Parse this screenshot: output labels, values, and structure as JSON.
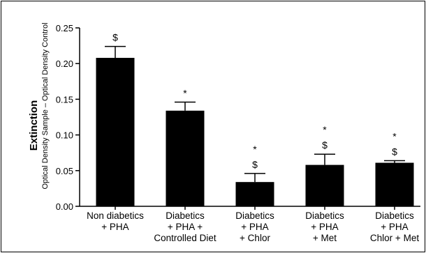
{
  "chart_data": {
    "type": "bar",
    "title": "",
    "ylabel": "Extinction",
    "ylabel_sub": "Optical Density Sample – Optical Density Control",
    "xlabel": "",
    "ylim": [
      0,
      0.25
    ],
    "yticks": [
      0.0,
      0.05,
      0.1,
      0.15,
      0.2,
      0.25
    ],
    "ytick_labels": [
      "0.00",
      "0.05",
      "0.10",
      "0.15",
      "0.20",
      "0.25"
    ],
    "grid": false,
    "bar_color": "#000000",
    "categories": [
      {
        "lines": [
          "Non diabetics",
          "+ PHA"
        ]
      },
      {
        "lines": [
          "Diabetics",
          "+ PHA  +",
          "Controlled Diet"
        ]
      },
      {
        "lines": [
          "Diabetics",
          "+ PHA",
          "+ Chlor"
        ]
      },
      {
        "lines": [
          "Diabetics",
          "+ PHA",
          "+ Met"
        ]
      },
      {
        "lines": [
          "Diabetics",
          "+ PHA",
          "Chlor + Met"
        ]
      }
    ],
    "values": [
      0.208,
      0.134,
      0.034,
      0.058,
      0.061
    ],
    "errors": [
      0.016,
      0.012,
      0.012,
      0.015,
      0.003
    ],
    "annotations": [
      [
        "$"
      ],
      [
        "*"
      ],
      [
        "*",
        "$"
      ],
      [
        "*",
        "$"
      ],
      [
        "*",
        "$"
      ]
    ]
  }
}
